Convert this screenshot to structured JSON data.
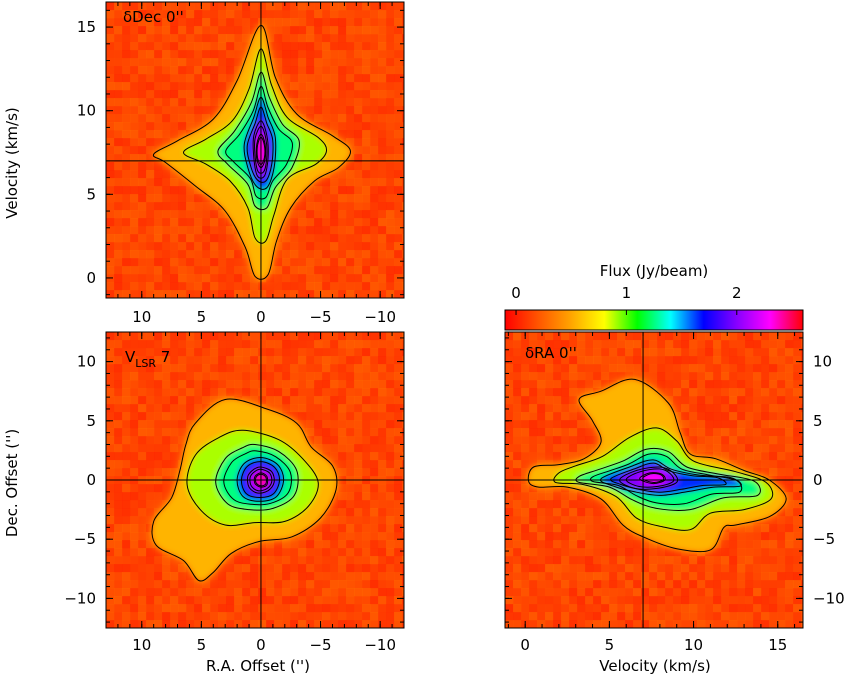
{
  "colorbar": {
    "title": "Flux (Jy/beam)",
    "ticks": [
      {
        "v": 0,
        "label": "0"
      },
      {
        "v": 1,
        "label": "1"
      },
      {
        "v": 2,
        "label": "2"
      }
    ],
    "range": [
      -0.1,
      2.6
    ],
    "stops": [
      "#ff0000",
      "#ff5500",
      "#ffa500",
      "#ffff00",
      "#00ff00",
      "#00ffff",
      "#0000ff",
      "#8800ff",
      "#ff00ff",
      "#ff0000"
    ]
  },
  "chart_data": [
    {
      "type": "heatmap",
      "id": "pv-ra",
      "label": "δDec 0''",
      "xlim": [
        13,
        -12
      ],
      "ylim": [
        -1.2,
        16.5
      ],
      "ylabel": "Velocity (km/s)",
      "xticks": [
        {
          "v": 10,
          "label": "10"
        },
        {
          "v": 5,
          "label": "5"
        },
        {
          "v": 0,
          "label": "0"
        },
        {
          "v": -5,
          "label": "−5"
        },
        {
          "v": -10,
          "label": "−10"
        }
      ],
      "yticks": [
        {
          "v": 0,
          "label": "0"
        },
        {
          "v": 5,
          "label": "5"
        },
        {
          "v": 10,
          "label": "10"
        },
        {
          "v": 15,
          "label": "15"
        }
      ],
      "xtick_side": "bottom-outside",
      "ytick_side": "left",
      "crosshair": [
        0,
        7
      ],
      "peak": {
        "x": 0,
        "y": 7.6,
        "flux": 2.3
      }
    },
    {
      "type": "heatmap",
      "id": "channel-map",
      "label": "V",
      "label_sub": "LSR",
      "label_value": " 7",
      "xlim": [
        13,
        -12
      ],
      "ylim": [
        -12.5,
        12.5
      ],
      "xlabel": "R.A. Offset ('')",
      "ylabel": "Dec. Offset ('')",
      "xticks": [
        {
          "v": 10,
          "label": "10"
        },
        {
          "v": 5,
          "label": "5"
        },
        {
          "v": 0,
          "label": "0"
        },
        {
          "v": -5,
          "label": "−5"
        },
        {
          "v": -10,
          "label": "−10"
        }
      ],
      "yticks": [
        {
          "v": -10,
          "label": "−10"
        },
        {
          "v": -5,
          "label": "−5"
        },
        {
          "v": 0,
          "label": "0"
        },
        {
          "v": 5,
          "label": "5"
        },
        {
          "v": 10,
          "label": "10"
        }
      ],
      "xtick_side": "bottom",
      "ytick_side": "left",
      "crosshair": [
        0,
        0
      ],
      "peak": {
        "x": 0,
        "y": 0,
        "flux": 2.4
      }
    },
    {
      "type": "heatmap",
      "id": "pv-dec",
      "label": "δRA 0''",
      "xlim": [
        -1.2,
        16.5
      ],
      "ylim": [
        -12.5,
        12.5
      ],
      "xlabel": "Velocity (km/s)",
      "xticks": [
        {
          "v": 0,
          "label": "0"
        },
        {
          "v": 5,
          "label": "5"
        },
        {
          "v": 10,
          "label": "10"
        },
        {
          "v": 15,
          "label": "15"
        }
      ],
      "yticks": [
        {
          "v": -10,
          "label": "−10"
        },
        {
          "v": -5,
          "label": "−5"
        },
        {
          "v": 0,
          "label": "0"
        },
        {
          "v": 5,
          "label": "5"
        },
        {
          "v": 10,
          "label": "10"
        }
      ],
      "xtick_side": "bottom",
      "ytick_side": "right",
      "crosshair": [
        7,
        0
      ],
      "peak": {
        "x": 7.8,
        "y": 0.2,
        "flux": 2.2
      }
    }
  ]
}
